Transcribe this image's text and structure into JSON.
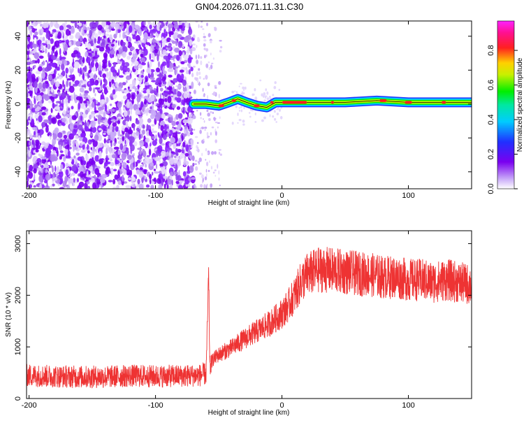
{
  "title": "GN04.2026.071.11.31.C30",
  "chart_data": [
    {
      "type": "heatmap",
      "xlabel": "Height of straight line (km)",
      "ylabel": "Frequency (Hz)",
      "xlim": [
        -202,
        150
      ],
      "ylim": [
        -50,
        49
      ],
      "xticks": [
        -200,
        -100,
        0,
        100
      ],
      "yticks": [
        -40,
        -20,
        0,
        20,
        40
      ],
      "colorbar": {
        "label": "Normalized spectral amplitude",
        "range": [
          0,
          0.97
        ],
        "ticks": [
          0.0,
          0.2,
          0.4,
          0.6,
          0.8
        ],
        "tick_labels": [
          "0.0",
          "0.2",
          "0.4",
          "0.6",
          "0.8"
        ],
        "colormap": "white-purple-blue-cyan-green-yellow-red-magenta"
      },
      "signal_band": [
        {
          "x": -70,
          "y": 0
        },
        {
          "x": -60,
          "y": 0
        },
        {
          "x": -50,
          "y": -1
        },
        {
          "x": -42,
          "y": 1
        },
        {
          "x": -35,
          "y": 3
        },
        {
          "x": -28,
          "y": 1
        },
        {
          "x": -20,
          "y": -1
        },
        {
          "x": -12,
          "y": -2
        },
        {
          "x": -5,
          "y": 1
        },
        {
          "x": 10,
          "y": 1
        },
        {
          "x": 25,
          "y": 1
        },
        {
          "x": 50,
          "y": 1
        },
        {
          "x": 75,
          "y": 2
        },
        {
          "x": 100,
          "y": 1
        },
        {
          "x": 125,
          "y": 1
        },
        {
          "x": 150,
          "y": 1
        }
      ]
    },
    {
      "type": "line",
      "xlabel": "Height of straight line (km)",
      "ylabel": "SNR (10 * v/v)",
      "xlim": [
        -202,
        150
      ],
      "ylim": [
        0,
        3250
      ],
      "xticks": [
        -200,
        -100,
        0,
        100
      ],
      "yticks": [
        0,
        1000,
        2000,
        3000
      ],
      "series": [
        {
          "color": "#ee3333",
          "x": [
            -202,
            -180,
            -160,
            -140,
            -120,
            -100,
            -80,
            -65,
            -60,
            -58,
            -57,
            -55,
            -50,
            -40,
            -30,
            -20,
            -10,
            0,
            5,
            10,
            15,
            20,
            30,
            40,
            50,
            60,
            70,
            80,
            90,
            100,
            110,
            120,
            130,
            140,
            150
          ],
          "values": [
            450,
            430,
            420,
            420,
            440,
            430,
            440,
            450,
            480,
            2350,
            600,
            750,
            850,
            980,
            1150,
            1300,
            1450,
            1650,
            1800,
            2000,
            2250,
            2400,
            2500,
            2480,
            2450,
            2420,
            2400,
            2350,
            2350,
            2300,
            2300,
            2250,
            2300,
            2250,
            2200
          ]
        }
      ]
    }
  ]
}
